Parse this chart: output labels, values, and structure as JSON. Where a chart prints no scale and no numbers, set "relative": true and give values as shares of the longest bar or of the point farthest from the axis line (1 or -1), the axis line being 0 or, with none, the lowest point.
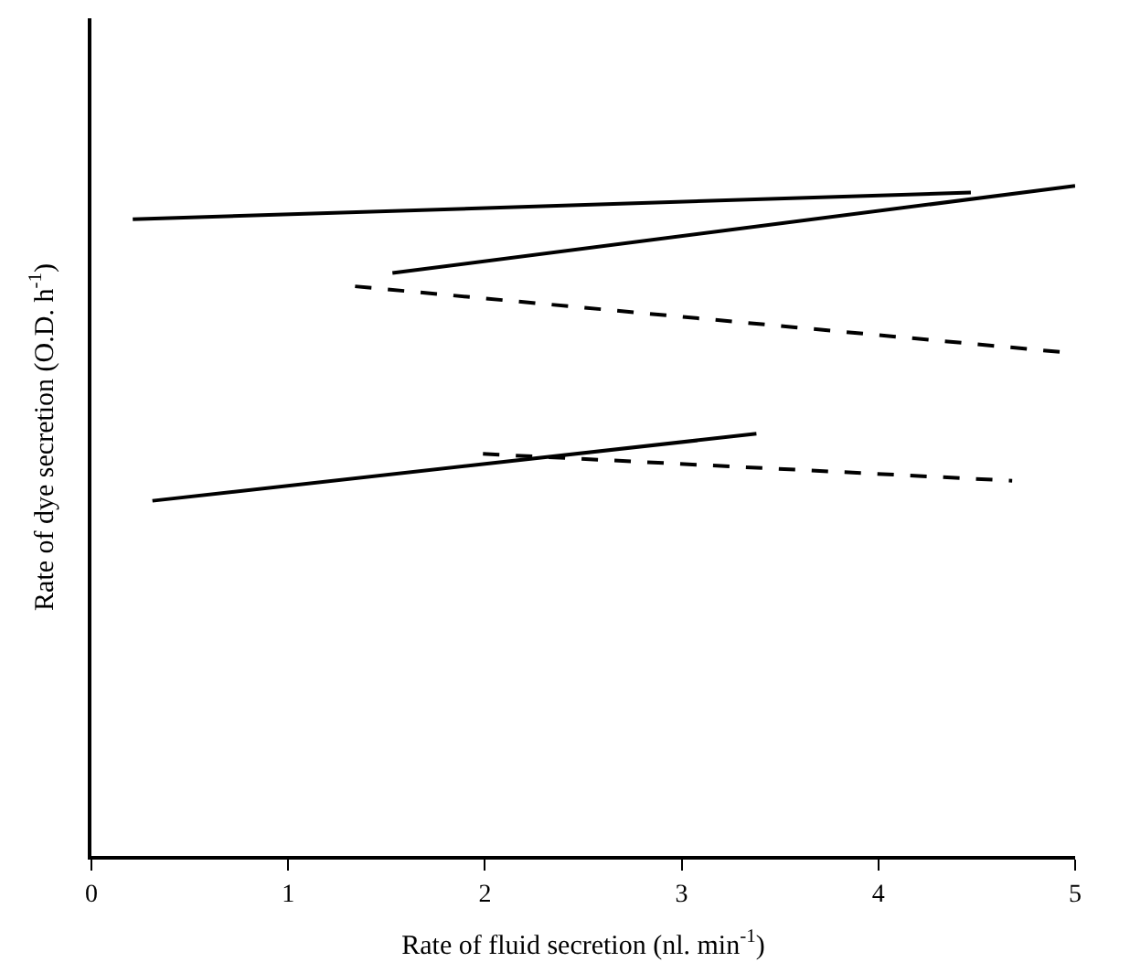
{
  "chart_data": {
    "type": "line",
    "relative": true,
    "xlabel": "Rate of fluid secretion (nl. min$^{-1}$)",
    "ylabel": "Rate of dye secretion (O.D. h$^{-1}$)",
    "xlim": [
      0,
      5
    ],
    "xticks": [
      0,
      1,
      2,
      3,
      4,
      5
    ],
    "marker": "none",
    "series": [
      {
        "color": "#000000",
        "line_style": "solid",
        "x": [
          0.21,
          4.47
        ],
        "values": [
          0.95,
          0.99
        ]
      },
      {
        "color": "#000000",
        "line_style": "solid",
        "x": [
          1.53,
          5
        ],
        "values": [
          0.87,
          1.0
        ]
      },
      {
        "color": "#000000",
        "line_style": "dashed",
        "x": [
          1.34,
          5
        ],
        "values": [
          0.85,
          0.75
        ]
      },
      {
        "color": "#000000",
        "line_style": "solid",
        "x": [
          0.31,
          3.38
        ],
        "values": [
          0.53,
          0.63
        ]
      },
      {
        "color": "#000000",
        "line_style": "dashed",
        "x": [
          1.99,
          4.68
        ],
        "values": [
          0.6,
          0.56
        ]
      }
    ]
  }
}
